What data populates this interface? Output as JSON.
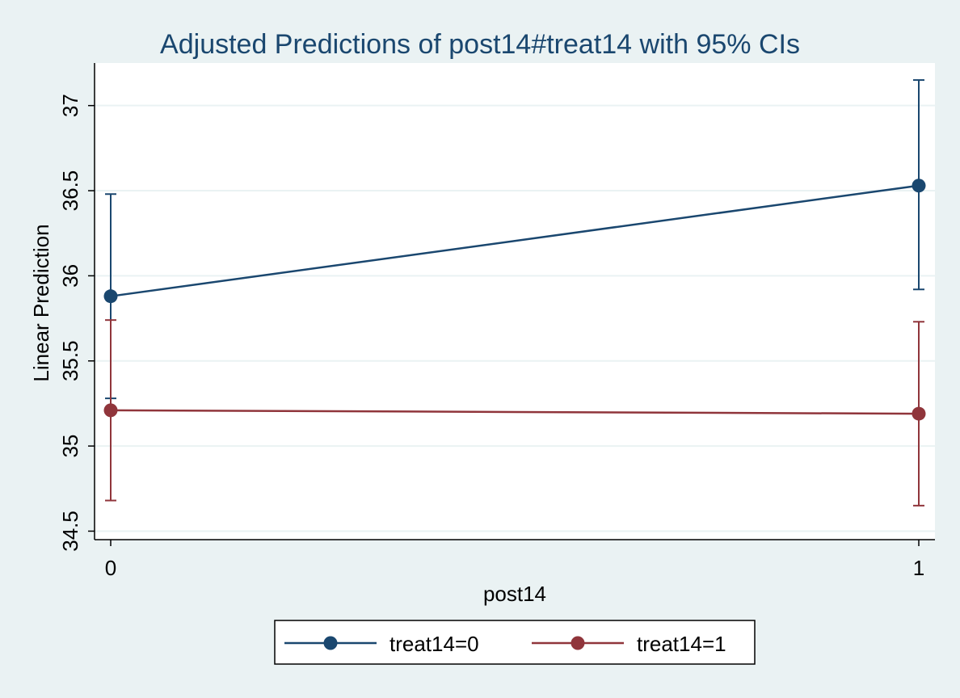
{
  "chart_data": {
    "type": "line",
    "title": "Adjusted Predictions of post14#treat14 with 95% CIs",
    "xlabel": "post14",
    "ylabel": "Linear Prediction",
    "x": [
      0,
      1
    ],
    "x_tick_labels": [
      "0",
      "1"
    ],
    "y_ticks": [
      34.5,
      35,
      35.5,
      36,
      36.5,
      37
    ],
    "y_tick_labels": [
      "34.5",
      "35",
      "35.5",
      "36",
      "36.5",
      "37"
    ],
    "ylim": [
      34.45,
      37.25
    ],
    "xlim": [
      -0.02,
      1.02
    ],
    "grid": true,
    "legend_position": "bottom",
    "series": [
      {
        "name": "treat14=0",
        "color": "#1a476f",
        "values": [
          35.88,
          36.53
        ],
        "ci_lower": [
          35.28,
          35.92
        ],
        "ci_upper": [
          36.48,
          37.15
        ]
      },
      {
        "name": "treat14=1",
        "color": "#90353b",
        "values": [
          35.21,
          35.19
        ],
        "ci_lower": [
          34.68,
          34.65
        ],
        "ci_upper": [
          35.74,
          35.73
        ]
      }
    ]
  }
}
